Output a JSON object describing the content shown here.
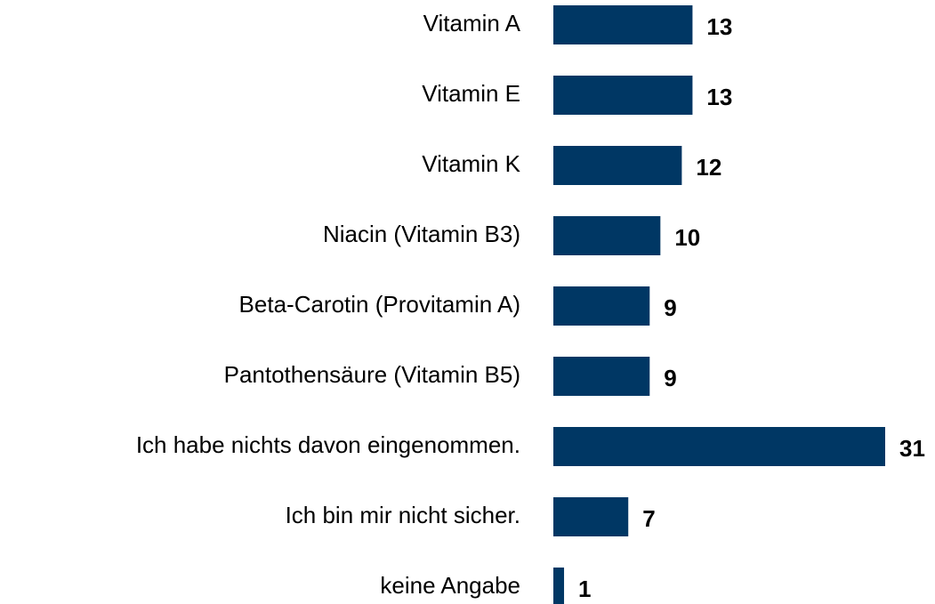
{
  "chart_data": {
    "type": "hbar",
    "categories": [
      "Vitamin A",
      "Vitamin E",
      "Vitamin K",
      "Niacin (Vitamin B3)",
      "Beta-Carotin (Provitamin A)",
      "Pantothensäure (Vitamin B5)",
      "Ich habe nichts davon eingenommen.",
      "Ich bin mir nicht sicher.",
      "keine Angabe"
    ],
    "values": [
      13,
      13,
      12,
      10,
      9,
      9,
      31,
      7,
      1
    ],
    "color": "#003764",
    "xlim": [
      0,
      31
    ]
  }
}
